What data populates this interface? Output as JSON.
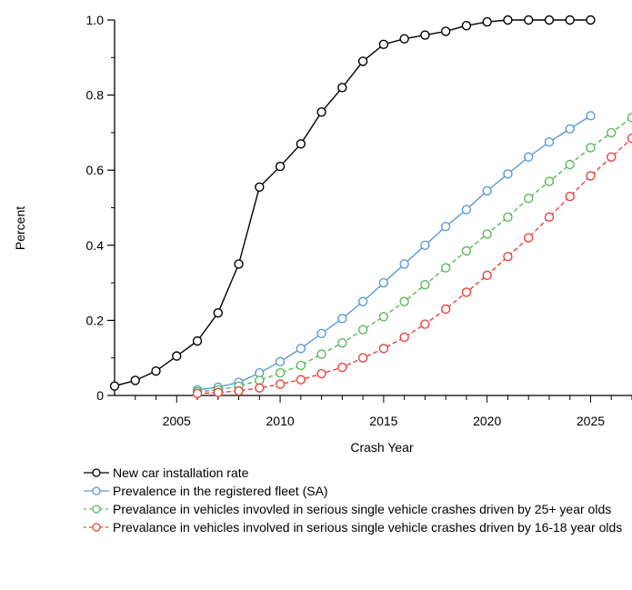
{
  "chart_data": {
    "type": "line",
    "xlabel": "Crash Year",
    "ylabel": "Percent",
    "xlim": [
      2002,
      2027
    ],
    "ylim": [
      0,
      1.0
    ],
    "x_ticks": [
      2005,
      2010,
      2015,
      2020,
      2025
    ],
    "y_ticks": [
      {
        "value": 0,
        "label": "0"
      },
      {
        "value": 0.2,
        "label": "0.2"
      },
      {
        "value": 0.4,
        "label": "0.4"
      },
      {
        "value": 0.6,
        "label": "0.6"
      },
      {
        "value": 0.8,
        "label": "0.8"
      },
      {
        "value": 1.0,
        "label": "1.0"
      }
    ],
    "legend_position": "bottom",
    "series": [
      {
        "name": "New car installation rate",
        "color": "#000000",
        "dashed": false,
        "x": [
          2002,
          2003,
          2004,
          2005,
          2006,
          2007,
          2008,
          2009,
          2010,
          2011,
          2012,
          2013,
          2014,
          2015,
          2016,
          2017,
          2018,
          2019,
          2020,
          2021,
          2022,
          2023,
          2024,
          2025
        ],
        "y": [
          0.025,
          0.04,
          0.065,
          0.105,
          0.145,
          0.22,
          0.35,
          0.555,
          0.61,
          0.67,
          0.755,
          0.82,
          0.89,
          0.935,
          0.95,
          0.96,
          0.97,
          0.985,
          0.995,
          1.0,
          1.0,
          1.0,
          1.0,
          1.0
        ]
      },
      {
        "name": "Prevalence in the registered fleet (SA)",
        "color": "#5b9bd5",
        "dashed": false,
        "x": [
          2006,
          2007,
          2008,
          2009,
          2010,
          2011,
          2012,
          2013,
          2014,
          2015,
          2016,
          2017,
          2018,
          2019,
          2020,
          2021,
          2022,
          2023,
          2024,
          2025
        ],
        "y": [
          0.015,
          0.022,
          0.035,
          0.06,
          0.09,
          0.125,
          0.165,
          0.205,
          0.25,
          0.3,
          0.35,
          0.4,
          0.45,
          0.495,
          0.545,
          0.59,
          0.635,
          0.675,
          0.71,
          0.745
        ]
      },
      {
        "name": "Prevalance in vehicles invovled in serious single vehicle crashes driven by 25+ year olds",
        "color": "#5cb85c",
        "dashed": true,
        "x": [
          2006,
          2007,
          2008,
          2009,
          2010,
          2011,
          2012,
          2013,
          2014,
          2015,
          2016,
          2017,
          2018,
          2019,
          2020,
          2021,
          2022,
          2023,
          2024,
          2025,
          2026,
          2027
        ],
        "y": [
          0.01,
          0.015,
          0.025,
          0.04,
          0.06,
          0.08,
          0.11,
          0.14,
          0.175,
          0.21,
          0.25,
          0.295,
          0.34,
          0.385,
          0.43,
          0.475,
          0.525,
          0.57,
          0.615,
          0.66,
          0.7,
          0.74
        ]
      },
      {
        "name": "Prevalance in vehicles involved in serious single vehicle crashes driven by 16-18 year olds",
        "color": "#e8423f",
        "dashed": true,
        "x": [
          2006,
          2007,
          2008,
          2009,
          2010,
          2011,
          2012,
          2013,
          2014,
          2015,
          2016,
          2017,
          2018,
          2019,
          2020,
          2021,
          2022,
          2023,
          2024,
          2025,
          2026,
          2027
        ],
        "y": [
          0.005,
          0.008,
          0.012,
          0.02,
          0.03,
          0.042,
          0.058,
          0.075,
          0.1,
          0.125,
          0.155,
          0.19,
          0.23,
          0.275,
          0.32,
          0.37,
          0.42,
          0.475,
          0.53,
          0.585,
          0.635,
          0.685
        ]
      }
    ]
  }
}
